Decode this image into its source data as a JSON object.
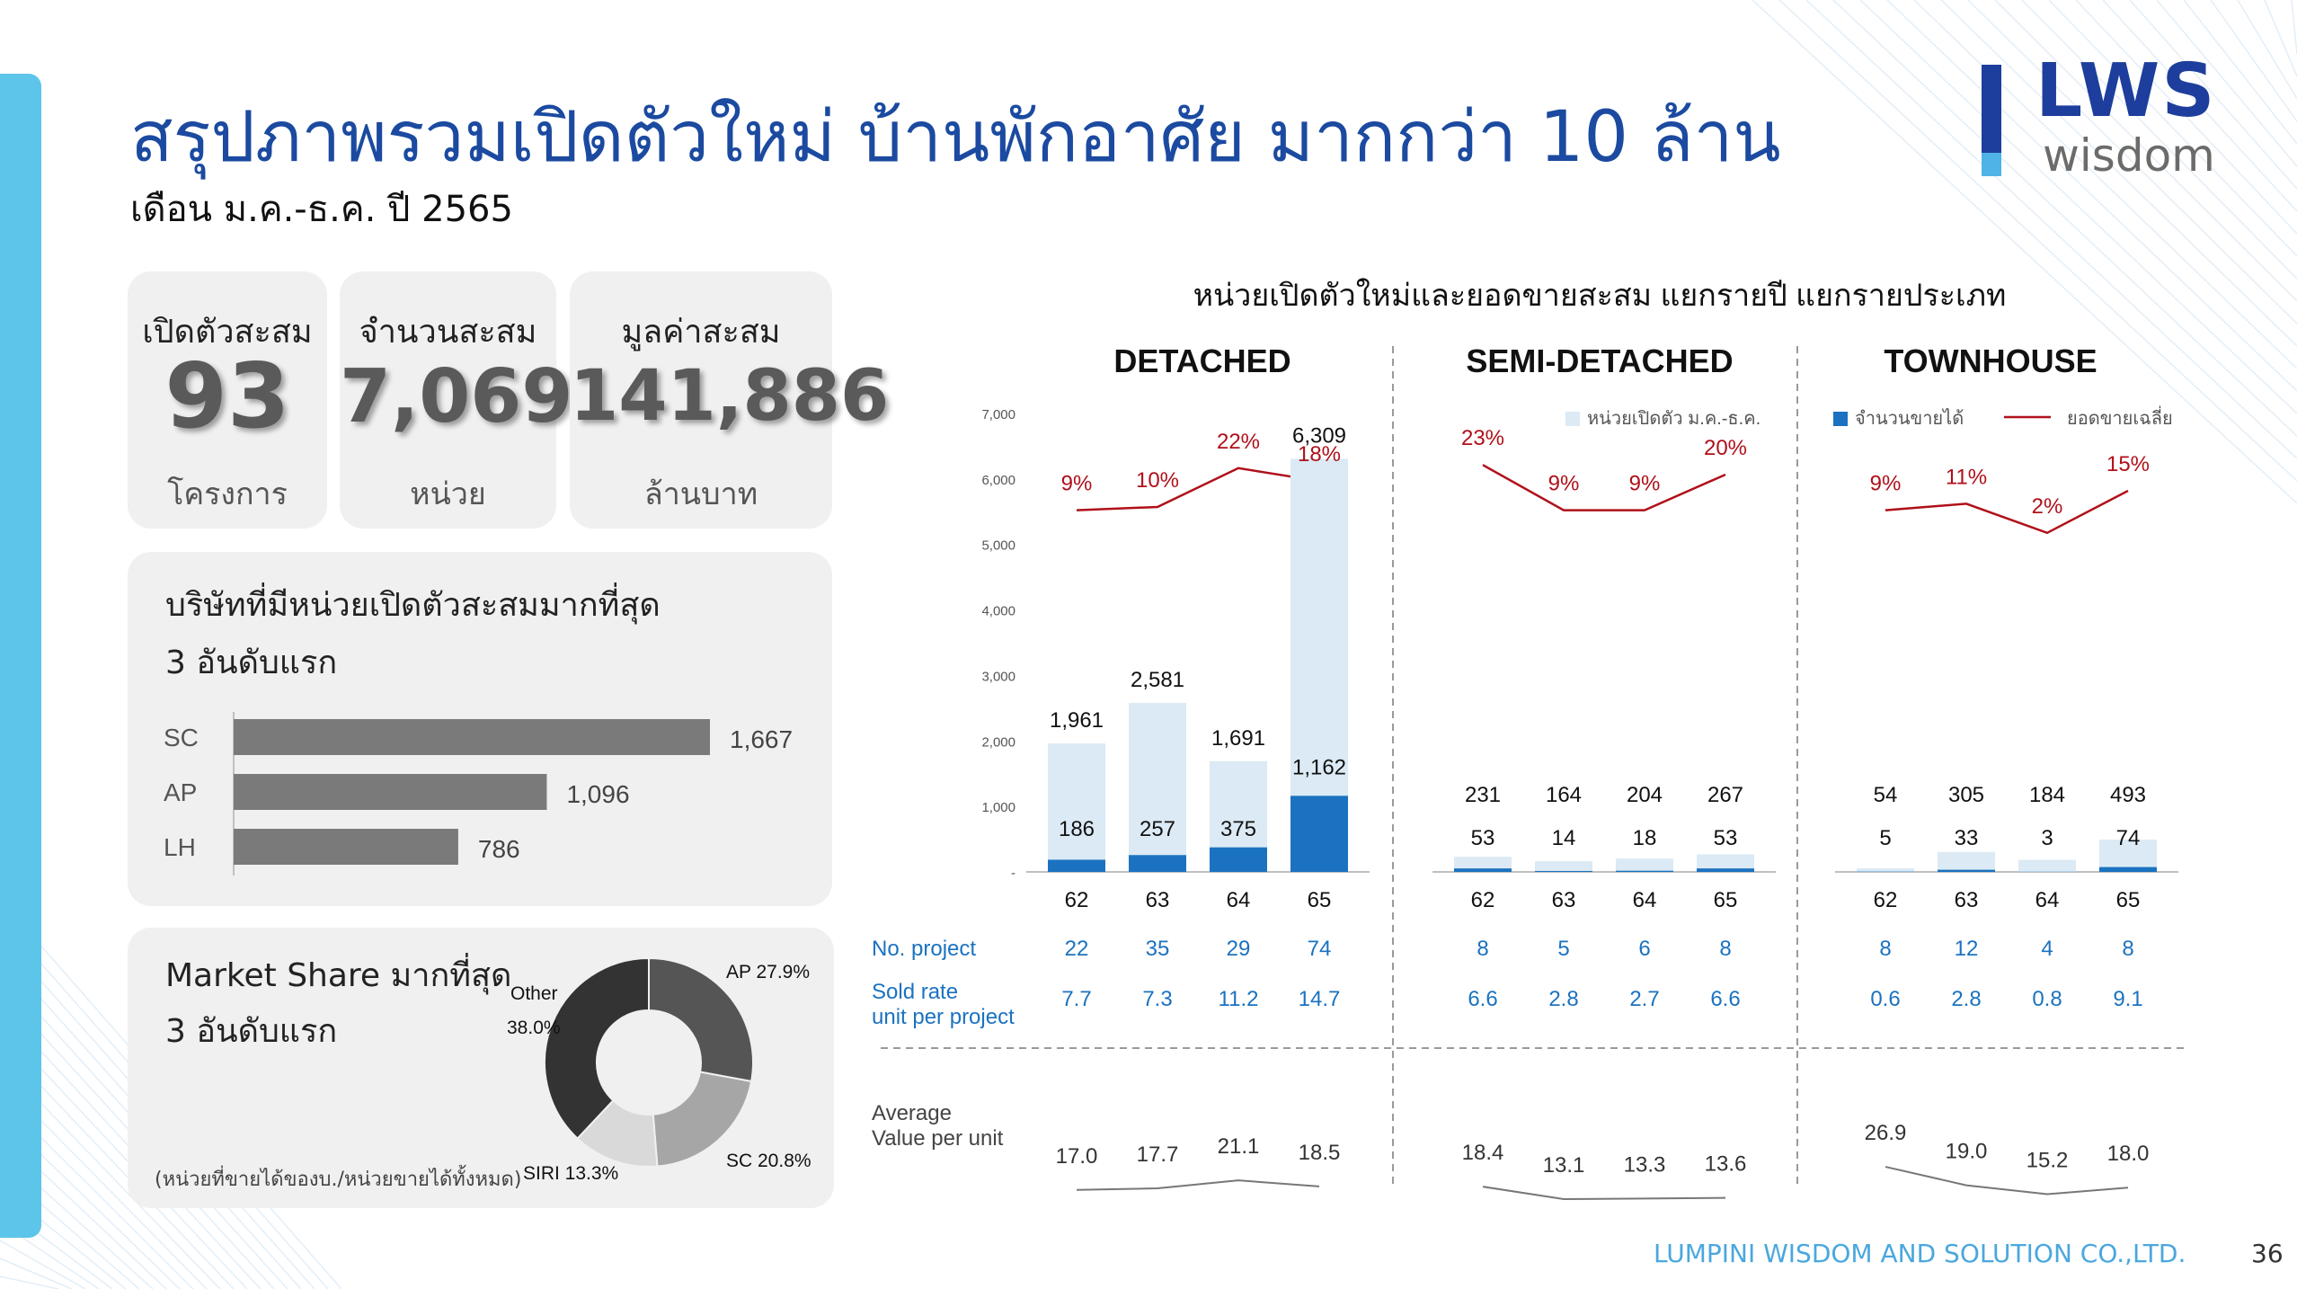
{
  "header": {
    "title": "สรุปภาพรวมเปิดตัวใหม่ บ้านพักอาศัย มากกว่า 10 ล้าน",
    "subtitle": "เดือน ม.ค.-ธ.ค. ปี 2565"
  },
  "logo": {
    "main": "LWS",
    "sub": "wisdom",
    "colors": {
      "main": "#1d3e9c",
      "sub": "#6b6b6b",
      "accent": "#4fb3e8"
    }
  },
  "kpis": [
    {
      "label": "เปิดตัวสะสม",
      "value": "93",
      "unit": "โครงการ"
    },
    {
      "label": "จำนวนสะสม",
      "value": "7,069",
      "unit": "หน่วย"
    },
    {
      "label": "มูลค่าสะสม",
      "value": "141,886",
      "unit": "ล้านบาท"
    }
  ],
  "top_companies": {
    "title_line1": "บริษัทที่มีหน่วยเปิดตัวสะสมมากที่สุด",
    "title_line2": "3 อันดับแรก",
    "items": [
      {
        "name": "SC",
        "value": 1667,
        "label": "1,667"
      },
      {
        "name": "AP",
        "value": 1096,
        "label": "1,096"
      },
      {
        "name": "LH",
        "value": 786,
        "label": "786"
      }
    ],
    "bar_color": "#7a7a7a"
  },
  "market_share": {
    "title_line1": "Market Share มากที่สุด",
    "title_line2": "3 อันดับแรก",
    "note": "(หน่วยที่ขายได้ของบ./หน่วยขายได้ทั้งหมด)",
    "slices": [
      {
        "name": "AP",
        "label": "AP 27.9%",
        "value": 27.9,
        "color": "#555555"
      },
      {
        "name": "SC",
        "label": "SC 20.8%",
        "value": 20.8,
        "color": "#a6a6a6"
      },
      {
        "name": "SIRI",
        "label": "SIRI 13.3%",
        "value": 13.3,
        "color": "#d9d9d9"
      },
      {
        "name": "Other",
        "label_line1": "Other",
        "label_line2": "38.0%",
        "value": 38.0,
        "color": "#333333"
      }
    ]
  },
  "chart_data": {
    "type": "bar",
    "title": "หน่วยเปิดตัวใหม่และยอดขายสะสม แยกรายปี แยกรายประเภท",
    "legend": {
      "units_launched": "หน่วยเปิดตัว ม.ค.-ธ.ค.",
      "units_sold": "จำนวนขายได้",
      "avg_sold": "ยอดขายเฉลี่ย",
      "placement": "top-right"
    },
    "y_ticks": [
      "-",
      "1,000",
      "2,000",
      "3,000",
      "4,000",
      "5,000",
      "6,000",
      "7,000"
    ],
    "ylim": [
      0,
      7000
    ],
    "grid": false,
    "row_labels": {
      "projects": "No. project",
      "sold_rate_line1": "Sold rate",
      "sold_rate_line2": "unit per project",
      "avg_value_line1": "Average",
      "avg_value_line2": "Value per unit"
    },
    "colors": {
      "launched": "#dbeaf4",
      "sold": "#1b72c0",
      "avg_line": "#b0101a",
      "blue_text": "#1b72c0",
      "value_line": "#777777"
    },
    "groups": [
      {
        "name": "DETACHED",
        "years": [
          "62",
          "63",
          "64",
          "65"
        ],
        "launched": [
          1961,
          2581,
          1691,
          6309
        ],
        "launched_labels": [
          "1,961",
          "2,581",
          "1,691",
          "6,309"
        ],
        "sold": [
          186,
          257,
          375,
          1162
        ],
        "sold_labels": [
          "186",
          "257",
          "375",
          "1,162"
        ],
        "avg_sold_pct": [
          9,
          10,
          22,
          18
        ],
        "avg_sold_labels": [
          "9%",
          "10%",
          "22%",
          "18%"
        ],
        "projects": [
          "22",
          "35",
          "29",
          "74"
        ],
        "sold_rate": [
          "7.7",
          "7.3",
          "11.2",
          "14.7"
        ],
        "avg_value": [
          17.0,
          17.7,
          21.1,
          18.5
        ],
        "avg_value_labels": [
          "17.0",
          "17.7",
          "21.1",
          "18.5"
        ]
      },
      {
        "name": "SEMI-DETACHED",
        "years": [
          "62",
          "63",
          "64",
          "65"
        ],
        "launched": [
          231,
          164,
          204,
          267
        ],
        "launched_labels": [
          "231",
          "164",
          "204",
          "267"
        ],
        "sold": [
          53,
          14,
          18,
          53
        ],
        "sold_labels": [
          "53",
          "14",
          "18",
          "53"
        ],
        "avg_sold_pct": [
          23,
          9,
          9,
          20
        ],
        "avg_sold_labels": [
          "23%",
          "9%",
          "9%",
          "20%"
        ],
        "projects": [
          "8",
          "5",
          "6",
          "8"
        ],
        "sold_rate": [
          "6.6",
          "2.8",
          "2.7",
          "6.6"
        ],
        "avg_value": [
          18.4,
          13.1,
          13.3,
          13.6
        ],
        "avg_value_labels": [
          "18.4",
          "13.1",
          "13.3",
          "13.6"
        ]
      },
      {
        "name": "TOWNHOUSE",
        "years": [
          "62",
          "63",
          "64",
          "65"
        ],
        "launched": [
          54,
          305,
          184,
          493
        ],
        "launched_labels": [
          "54",
          "305",
          "184",
          "493"
        ],
        "sold": [
          5,
          33,
          3,
          74
        ],
        "sold_labels": [
          "5",
          "33",
          "3",
          "74"
        ],
        "avg_sold_pct": [
          9,
          11,
          2,
          15
        ],
        "avg_sold_labels": [
          "9%",
          "11%",
          "2%",
          "15%"
        ],
        "projects": [
          "8",
          "12",
          "4",
          "8"
        ],
        "sold_rate": [
          "0.6",
          "2.8",
          "0.8",
          "9.1"
        ],
        "avg_value": [
          26.9,
          19.0,
          15.2,
          18.0
        ],
        "avg_value_labels": [
          "26.9",
          "19.0",
          "15.2",
          "18.0"
        ]
      }
    ]
  },
  "footer": {
    "company": "LUMPINI WISDOM AND SOLUTION CO.,LTD.",
    "page": "36"
  }
}
